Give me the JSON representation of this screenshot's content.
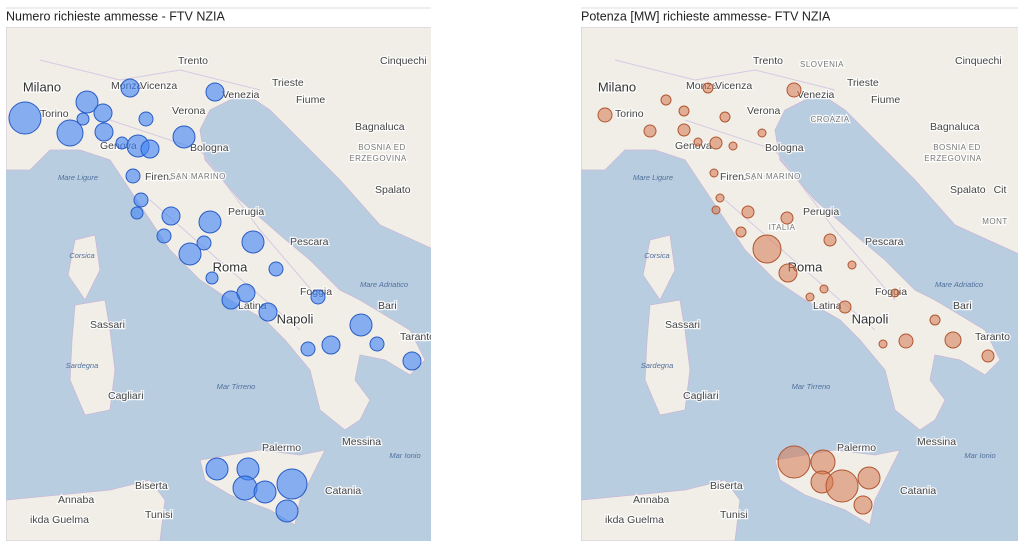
{
  "left_map": {
    "title": "Numero richieste ammesse - FTV NZIA"
  },
  "right_map": {
    "title": "Potenza [MW] richieste ammesse- FTV NZIA",
    "extra_labels": [
      "SLOVENIA",
      "CROAZIA",
      "ITALIA",
      "Cit",
      "MONT"
    ]
  },
  "map_labels": [
    "Trento",
    "Milano",
    "Monza",
    "Vicenza",
    "Trieste",
    "Cinquechi",
    "Torino",
    "Verona",
    "Venezia",
    "Fiume",
    "Bagnaluca",
    "Genova",
    "Bologna",
    "Mare Ligure",
    "BOSNIA ED",
    "ERZEGOVINA",
    "Spalato",
    "Firenze",
    "SAN MARINO",
    "Perugia",
    "Pescara",
    "Corsica",
    "Roma",
    "Mare Adriatico",
    "Foggia",
    "Bari",
    "Sassari",
    "Latina",
    "Napoli",
    "Taranto",
    "Sardegna",
    "Cagliari",
    "Mar Tirreno",
    "Palermo",
    "Messina",
    "Mar Ionio",
    "Catania",
    "Biserta",
    "Annaba",
    "Tunisi",
    "ikda Guelma"
  ]
}
